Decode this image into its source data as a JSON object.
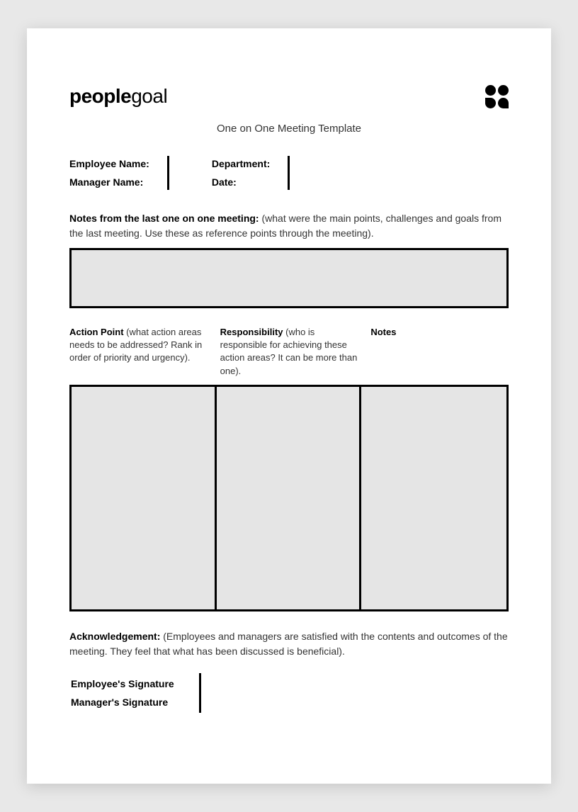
{
  "logo": {
    "part1": "people",
    "part2": "goal"
  },
  "title": "One on One Meeting Template",
  "info_fields": {
    "left": {
      "row1": "Employee Name:",
      "row2": "Manager Name:"
    },
    "right": {
      "row1": "Department:",
      "row2": "Date:"
    }
  },
  "notes_section": {
    "label": "Notes from the last one on one meeting:",
    "hint": " (what were the main points, challenges and goals from the last meeting. Use these as reference points through the meeting)."
  },
  "columns": {
    "action": {
      "label": "Action Point",
      "hint": " (what action areas needs to be addressed? Rank in order of priority and urgency)."
    },
    "responsibility": {
      "label": "Responsibility",
      "hint": " (who is responsible for achieving these action areas? It can be more than one)."
    },
    "notes": {
      "label": "Notes",
      "hint": ""
    }
  },
  "acknowledgement": {
    "label": "Acknowledgement:",
    "hint": " (Employees and managers are satisfied with the contents and outcomes of the meeting. They feel that what has been discussed is beneficial)."
  },
  "signatures": {
    "employee": "Employee's Signature",
    "manager": "Manager's Signature"
  },
  "colors": {
    "page_bg": "#ffffff",
    "body_bg": "#e8e8e8",
    "box_fill": "#e5e5e5",
    "border": "#000000",
    "text": "#333333",
    "bold_text": "#000000"
  }
}
